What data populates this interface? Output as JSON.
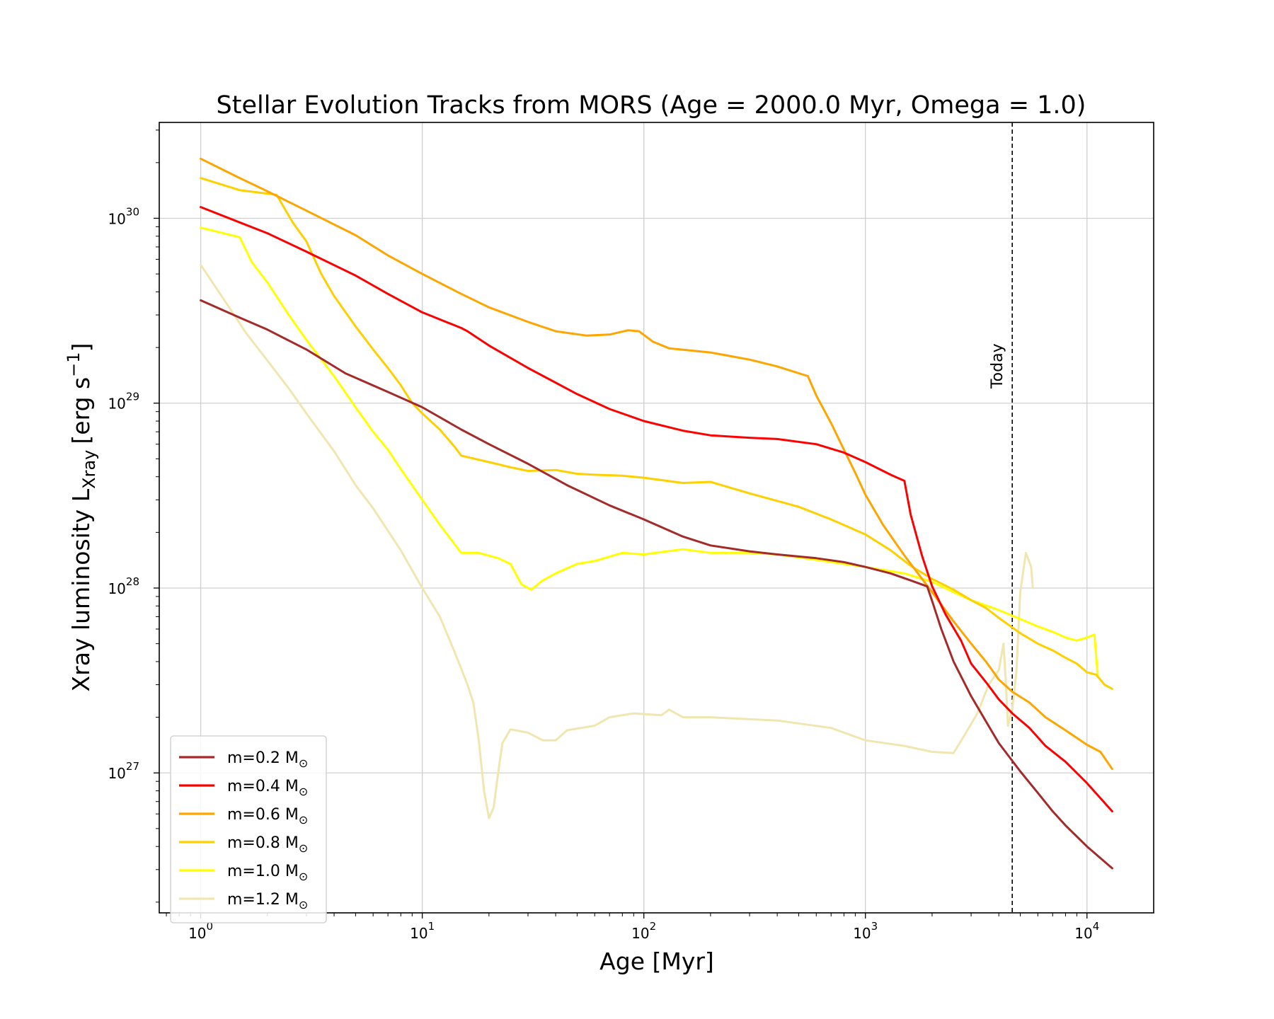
{
  "chart_data": {
    "type": "line",
    "title": "Stellar Evolution Tracks from MORS (Age = 2000.0 Myr, Omega = 1.0)",
    "xlabel": "Age [Myr]",
    "ylabel": "Xray luminosity L",
    "ylabel_sub": "Xray",
    "ylabel_units": "[erg s",
    "ylabel_units_sup": "−1",
    "ylabel_units_close": "]",
    "xscale": "log",
    "yscale": "log",
    "xlim": [
      0.65,
      20000
    ],
    "ylim": [
      1.75e+26,
      3.3e+30
    ],
    "xticks": [
      {
        "value": 1,
        "base": "10",
        "exp": "0"
      },
      {
        "value": 10,
        "base": "10",
        "exp": "1"
      },
      {
        "value": 100,
        "base": "10",
        "exp": "2"
      },
      {
        "value": 1000,
        "base": "10",
        "exp": "3"
      },
      {
        "value": 10000,
        "base": "10",
        "exp": "4"
      }
    ],
    "yticks": [
      {
        "value": 1e+27,
        "base": "10",
        "exp": "27"
      },
      {
        "value": 1e+28,
        "base": "10",
        "exp": "28"
      },
      {
        "value": 1e+29,
        "base": "10",
        "exp": "29"
      },
      {
        "value": 1e+30,
        "base": "10",
        "exp": "30"
      }
    ],
    "grid": true,
    "legend_position": "lower-left",
    "annotation": {
      "label": "Today",
      "x": 4600
    },
    "series": [
      {
        "name": "m=0.2 M",
        "name_sub": "⊙",
        "color": "#a52a2a",
        "points": [
          [
            1,
            3.6e+29
          ],
          [
            1.5,
            2.9e+29
          ],
          [
            2,
            2.5e+29
          ],
          [
            3,
            1.95e+29
          ],
          [
            4.5,
            1.45e+29
          ],
          [
            7,
            1.15e+29
          ],
          [
            10,
            9.5e+28
          ],
          [
            15,
            7.2e+28
          ],
          [
            20,
            6e+28
          ],
          [
            30,
            4.7e+28
          ],
          [
            45,
            3.6e+28
          ],
          [
            70,
            2.8e+28
          ],
          [
            100,
            2.35e+28
          ],
          [
            150,
            1.9e+28
          ],
          [
            200,
            1.7e+28
          ],
          [
            300,
            1.58e+28
          ],
          [
            400,
            1.52e+28
          ],
          [
            600,
            1.45e+28
          ],
          [
            800,
            1.38e+28
          ],
          [
            1000,
            1.3e+28
          ],
          [
            1300,
            1.2e+28
          ],
          [
            1600,
            1.1e+28
          ],
          [
            1900,
            1.02e+28
          ],
          [
            2000,
            8.5e+27
          ],
          [
            2200,
            6e+27
          ],
          [
            2500,
            4e+27
          ],
          [
            3000,
            2.6e+27
          ],
          [
            3500,
            1.9e+27
          ],
          [
            4000,
            1.45e+27
          ],
          [
            5000,
            1.02e+27
          ],
          [
            6000,
            7.8e+26
          ],
          [
            7000,
            6.2e+26
          ],
          [
            8000,
            5.2e+26
          ],
          [
            10000,
            4e+26
          ],
          [
            13000,
            3.05e+26
          ]
        ]
      },
      {
        "name": "m=0.4 M",
        "name_sub": "⊙",
        "color": "#ff0000",
        "points": [
          [
            1,
            1.15e+30
          ],
          [
            1.5,
            9.5e+29
          ],
          [
            2,
            8.3e+29
          ],
          [
            3,
            6.6e+29
          ],
          [
            5,
            4.9e+29
          ],
          [
            7,
            3.9e+29
          ],
          [
            10,
            3.1e+29
          ],
          [
            15,
            2.55e+29
          ],
          [
            16,
            2.45e+29
          ],
          [
            20,
            2.05e+29
          ],
          [
            30,
            1.55e+29
          ],
          [
            50,
            1.12e+29
          ],
          [
            70,
            9.3e+28
          ],
          [
            100,
            8e+28
          ],
          [
            150,
            7.1e+28
          ],
          [
            200,
            6.7e+28
          ],
          [
            300,
            6.5e+28
          ],
          [
            400,
            6.4e+28
          ],
          [
            600,
            6e+28
          ],
          [
            800,
            5.4e+28
          ],
          [
            1000,
            4.8e+28
          ],
          [
            1300,
            4.1e+28
          ],
          [
            1500,
            3.8e+28
          ],
          [
            1600,
            2.5e+28
          ],
          [
            1800,
            1.5e+28
          ],
          [
            2000,
            1.02e+28
          ],
          [
            2300,
            7.2e+27
          ],
          [
            2700,
            5.2e+27
          ],
          [
            3000,
            3.9e+27
          ],
          [
            3500,
            3.1e+27
          ],
          [
            4000,
            2.5e+27
          ],
          [
            4600,
            2.1e+27
          ],
          [
            5500,
            1.75e+27
          ],
          [
            6500,
            1.4e+27
          ],
          [
            8000,
            1.15e+27
          ],
          [
            10000,
            8.8e+26
          ],
          [
            13000,
            6.2e+26
          ]
        ]
      },
      {
        "name": "m=0.6 M",
        "name_sub": "⊙",
        "color": "#ffa500",
        "points": [
          [
            1,
            2.1e+30
          ],
          [
            1.5,
            1.65e+30
          ],
          [
            2,
            1.4e+30
          ],
          [
            3,
            1.1e+30
          ],
          [
            5,
            8.1e+29
          ],
          [
            7,
            6.3e+29
          ],
          [
            10,
            5e+29
          ],
          [
            15,
            3.9e+29
          ],
          [
            20,
            3.3e+29
          ],
          [
            30,
            2.75e+29
          ],
          [
            40,
            2.45e+29
          ],
          [
            55,
            2.32e+29
          ],
          [
            70,
            2.35e+29
          ],
          [
            85,
            2.48e+29
          ],
          [
            95,
            2.45e+29
          ],
          [
            110,
            2.15e+29
          ],
          [
            130,
            1.98e+29
          ],
          [
            200,
            1.88e+29
          ],
          [
            300,
            1.72e+29
          ],
          [
            400,
            1.58e+29
          ],
          [
            550,
            1.4e+29
          ],
          [
            600,
            1.1e+29
          ],
          [
            700,
            7.8e+28
          ],
          [
            800,
            5.6e+28
          ],
          [
            900,
            4.2e+28
          ],
          [
            1000,
            3.2e+28
          ],
          [
            1200,
            2.2e+28
          ],
          [
            1500,
            1.5e+28
          ],
          [
            2000,
            9.5e+27
          ],
          [
            2500,
            6.6e+27
          ],
          [
            3000,
            5e+27
          ],
          [
            3500,
            4e+27
          ],
          [
            4000,
            3.2e+27
          ],
          [
            4600,
            2.75e+27
          ],
          [
            5500,
            2.4e+27
          ],
          [
            6500,
            2e+27
          ],
          [
            8000,
            1.7e+27
          ],
          [
            10000,
            1.42e+27
          ],
          [
            11500,
            1.3e+27
          ],
          [
            13000,
            1.05e+27
          ]
        ]
      },
      {
        "name": "m=0.8 M",
        "name_sub": "⊙",
        "color": "#ffd000",
        "points": [
          [
            1,
            1.65e+30
          ],
          [
            1.5,
            1.42e+30
          ],
          [
            2,
            1.36e+30
          ],
          [
            2.2,
            1.34e+30
          ],
          [
            2.6,
            9.5e+29
          ],
          [
            3,
            7.5e+29
          ],
          [
            3.5,
            5e+29
          ],
          [
            4,
            3.8e+29
          ],
          [
            5,
            2.6e+29
          ],
          [
            6,
            1.95e+29
          ],
          [
            7,
            1.55e+29
          ],
          [
            8,
            1.25e+29
          ],
          [
            9,
            1e+29
          ],
          [
            10,
            8.8e+28
          ],
          [
            12,
            7.2e+28
          ],
          [
            14,
            5.8e+28
          ],
          [
            15,
            5.2e+28
          ],
          [
            20,
            4.8e+28
          ],
          [
            25,
            4.5e+28
          ],
          [
            30,
            4.3e+28
          ],
          [
            40,
            4.35e+28
          ],
          [
            50,
            4.15e+28
          ],
          [
            60,
            4.1e+28
          ],
          [
            80,
            4.05e+28
          ],
          [
            100,
            3.95e+28
          ],
          [
            150,
            3.7e+28
          ],
          [
            200,
            3.75e+28
          ],
          [
            300,
            3.25e+28
          ],
          [
            500,
            2.75e+28
          ],
          [
            700,
            2.35e+28
          ],
          [
            1000,
            1.95e+28
          ],
          [
            1300,
            1.6e+28
          ],
          [
            1600,
            1.32e+28
          ],
          [
            2000,
            1.12e+28
          ],
          [
            2500,
            9.8e+27
          ],
          [
            3000,
            8.6e+27
          ],
          [
            3500,
            7.8e+27
          ],
          [
            4000,
            6.9e+27
          ],
          [
            5000,
            5.7e+27
          ],
          [
            6000,
            5e+27
          ],
          [
            7000,
            4.6e+27
          ],
          [
            8000,
            4.2e+27
          ],
          [
            9000,
            3.9e+27
          ],
          [
            10000,
            3.5e+27
          ],
          [
            11000,
            3.4e+27
          ],
          [
            12000,
            3e+27
          ],
          [
            13000,
            2.85e+27
          ]
        ]
      },
      {
        "name": "m=1.0 M",
        "name_sub": "⊙",
        "color": "#ffff00",
        "points": [
          [
            1,
            8.9e+29
          ],
          [
            1.5,
            7.9e+29
          ],
          [
            1.7,
            5.8e+29
          ],
          [
            2,
            4.5e+29
          ],
          [
            2.5,
            3e+29
          ],
          [
            3,
            2.2e+29
          ],
          [
            4,
            1.4e+29
          ],
          [
            5,
            9.5e+28
          ],
          [
            6,
            7e+28
          ],
          [
            7,
            5.6e+28
          ],
          [
            8,
            4.4e+28
          ],
          [
            10,
            3e+28
          ],
          [
            12,
            2.2e+28
          ],
          [
            15,
            1.55e+28
          ],
          [
            18,
            1.55e+28
          ],
          [
            22,
            1.45e+28
          ],
          [
            25,
            1.35e+28
          ],
          [
            28,
            1.05e+28
          ],
          [
            31,
            9.8e+27
          ],
          [
            35,
            1.1e+28
          ],
          [
            40,
            1.2e+28
          ],
          [
            50,
            1.35e+28
          ],
          [
            60,
            1.4e+28
          ],
          [
            80,
            1.55e+28
          ],
          [
            100,
            1.52e+28
          ],
          [
            150,
            1.62e+28
          ],
          [
            200,
            1.55e+28
          ],
          [
            300,
            1.55e+28
          ],
          [
            400,
            1.52e+28
          ],
          [
            600,
            1.42e+28
          ],
          [
            800,
            1.35e+28
          ],
          [
            1000,
            1.3e+28
          ],
          [
            1500,
            1.2e+28
          ],
          [
            2000,
            1.08e+28
          ],
          [
            2500,
            9.5e+27
          ],
          [
            3000,
            8.6e+27
          ],
          [
            4000,
            7.6e+27
          ],
          [
            5000,
            6.8e+27
          ],
          [
            6000,
            6.2e+27
          ],
          [
            7000,
            5.8e+27
          ],
          [
            8000,
            5.4e+27
          ],
          [
            9000,
            5.2e+27
          ],
          [
            10000,
            5.4e+27
          ],
          [
            10800,
            5.6e+27
          ],
          [
            11200,
            3.3e+27
          ]
        ]
      },
      {
        "name": "m=1.2 M",
        "name_sub": "⊙",
        "color": "#f0e6b0",
        "points": [
          [
            1,
            5.6e+29
          ],
          [
            1.3,
            3.5e+29
          ],
          [
            1.6,
            2.4e+29
          ],
          [
            2,
            1.7e+29
          ],
          [
            2.5,
            1.2e+29
          ],
          [
            3,
            8.8e+28
          ],
          [
            4,
            5.5e+28
          ],
          [
            5,
            3.6e+28
          ],
          [
            6,
            2.7e+28
          ],
          [
            8,
            1.6e+28
          ],
          [
            10,
            1e+28
          ],
          [
            12,
            7e+27
          ],
          [
            14,
            4.5e+27
          ],
          [
            16,
            3e+27
          ],
          [
            17,
            2.4e+27
          ],
          [
            18,
            1.5e+27
          ],
          [
            19,
            8e+26
          ],
          [
            20,
            5.7e+26
          ],
          [
            21,
            6.5e+26
          ],
          [
            22,
            1e+27
          ],
          [
            23,
            1.45e+27
          ],
          [
            25,
            1.72e+27
          ],
          [
            30,
            1.65e+27
          ],
          [
            35,
            1.5e+27
          ],
          [
            40,
            1.5e+27
          ],
          [
            45,
            1.7e+27
          ],
          [
            60,
            1.8e+27
          ],
          [
            70,
            2e+27
          ],
          [
            90,
            2.1e+27
          ],
          [
            120,
            2.05e+27
          ],
          [
            130,
            2.2e+27
          ],
          [
            150,
            2e+27
          ],
          [
            200,
            2e+27
          ],
          [
            400,
            1.92e+27
          ],
          [
            700,
            1.75e+27
          ],
          [
            1000,
            1.5e+27
          ],
          [
            1500,
            1.4e+27
          ],
          [
            2000,
            1.3e+27
          ],
          [
            2500,
            1.28e+27
          ],
          [
            2800,
            1.6e+27
          ],
          [
            3200,
            2.1e+27
          ],
          [
            3600,
            3e+27
          ],
          [
            4000,
            3.6e+27
          ],
          [
            4200,
            5e+27
          ],
          [
            4300,
            3.2e+27
          ],
          [
            4400,
            1.8e+27
          ],
          [
            4600,
            2.2e+27
          ],
          [
            4800,
            3.5e+27
          ],
          [
            5000,
            9.5e+27
          ],
          [
            5300,
            1.55e+28
          ],
          [
            5600,
            1.3e+28
          ],
          [
            5700,
            1e+28
          ]
        ]
      }
    ]
  }
}
